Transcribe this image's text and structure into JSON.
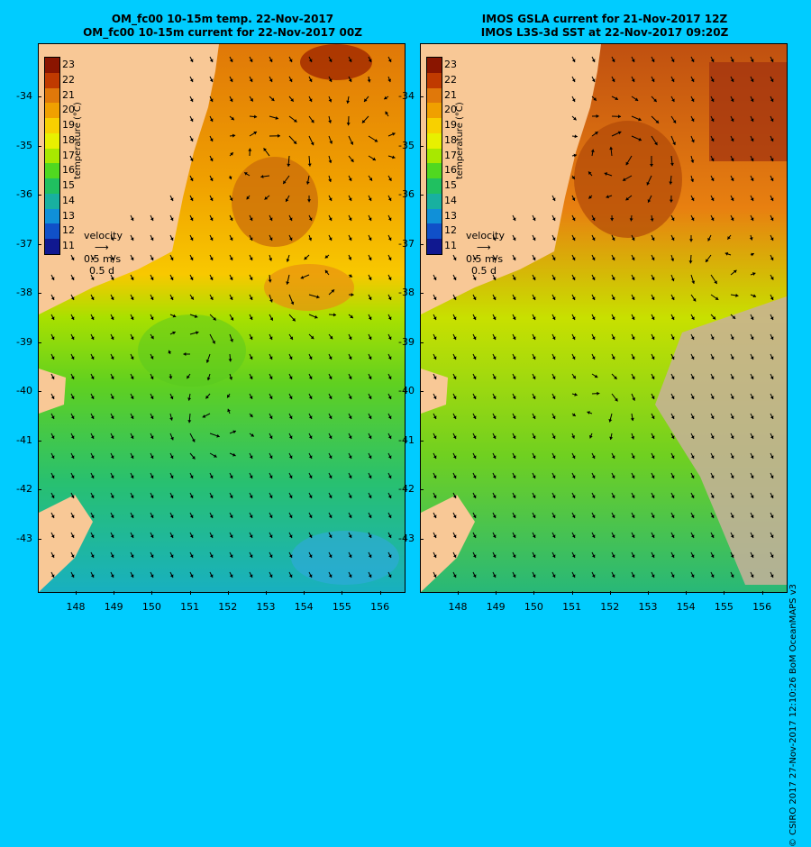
{
  "left_panel": {
    "title_line1": "OM_fc00 10-15m temp. 22-Nov-2017",
    "title_line2": "OM_fc00 10-15m current for 22-Nov-2017 00Z"
  },
  "right_panel": {
    "title_line1": "IMOS GSLA current for 21-Nov-2017 12Z",
    "title_line2": "IMOS L3S-3d SST at 22-Nov-2017 09:20Z"
  },
  "y_axis": [
    "-34",
    "-35",
    "-36",
    "-37",
    "-38",
    "-39",
    "-40",
    "-41",
    "-42",
    "-43"
  ],
  "x_axis": [
    "148",
    "149",
    "150",
    "151",
    "152",
    "153",
    "154",
    "155",
    "156"
  ],
  "colorbar": {
    "labels": [
      "23",
      "22",
      "21",
      "20",
      "19",
      "18",
      "17",
      "16",
      "15",
      "14",
      "13",
      "12",
      "11"
    ],
    "title": "temperature (°C)",
    "colors": [
      "#8a1500",
      "#c03a00",
      "#e0780a",
      "#f0a000",
      "#f8d000",
      "#e8f000",
      "#a8e800",
      "#50d820",
      "#20c060",
      "#18b0a0",
      "#1090d8",
      "#1050c8",
      "#101890"
    ]
  },
  "velocity_legend": {
    "label": "velocity",
    "speed": "0.5 m/s",
    "time": "0.5 d"
  },
  "credit": "© CSIRO 2017   27-Nov-2017 12:10:26 BoM OceanMAPS v3",
  "colors": {
    "background": "#00ccff",
    "land": "#f8c896",
    "no_data": "#c8b09a"
  }
}
